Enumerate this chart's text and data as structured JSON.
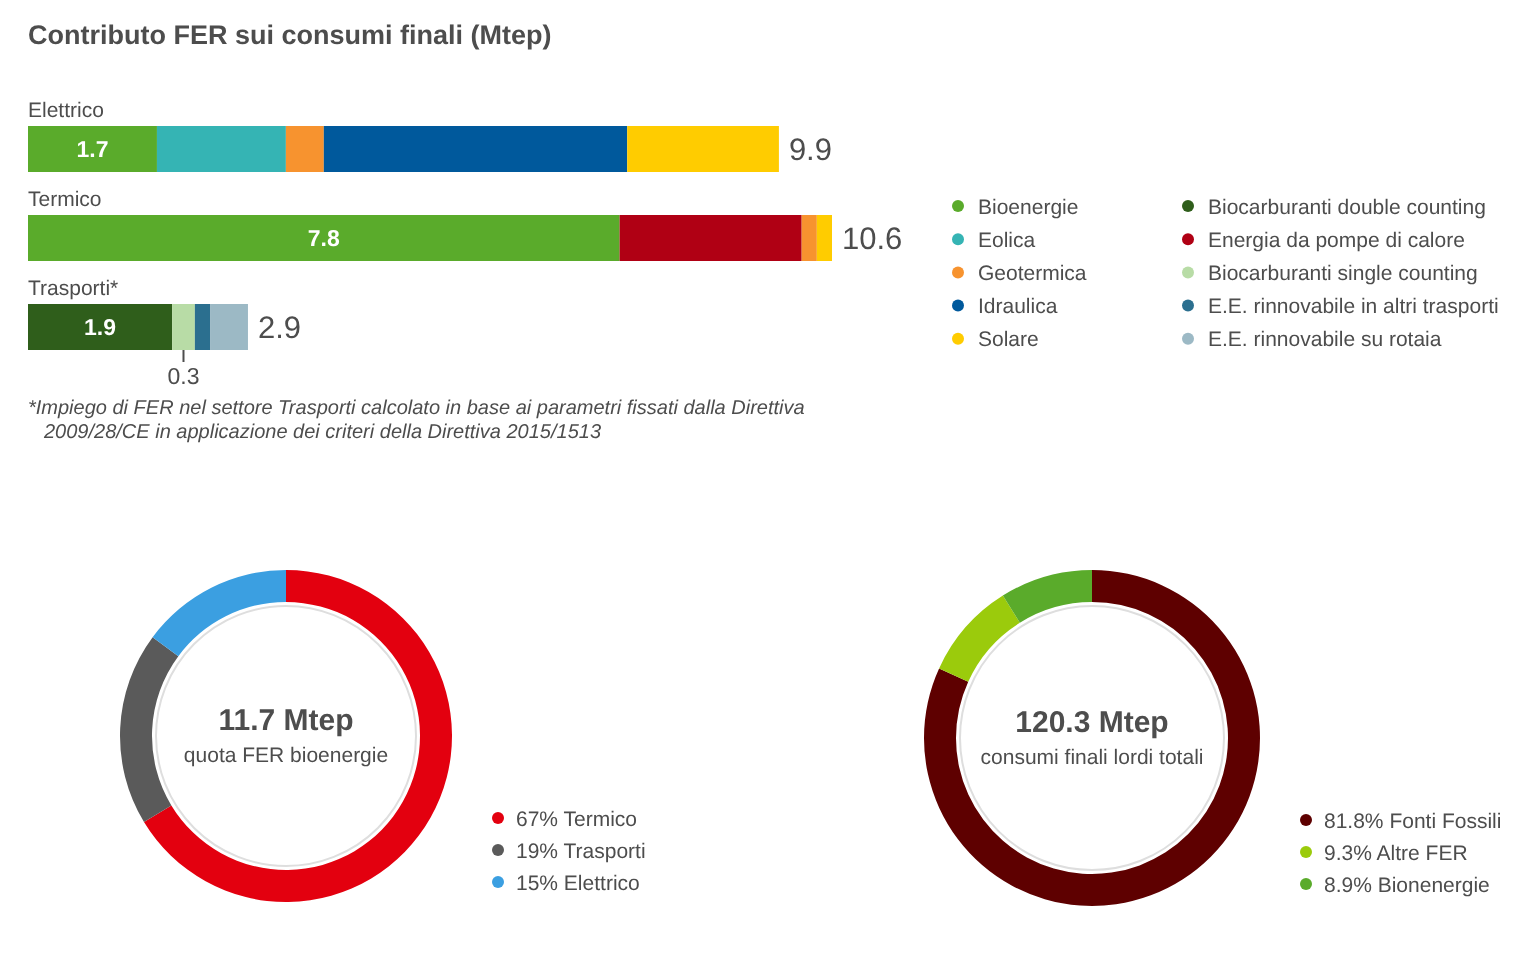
{
  "chart_data": [
    {
      "type": "bar",
      "orientation": "horizontal",
      "stacked": true,
      "title": "Contributo FER sui consumi finali (Mtep)",
      "categories": [
        "Elettrico",
        "Termico",
        "Trasporti*"
      ],
      "series": [
        {
          "name": "Bioenergie",
          "color": "#5aab2b",
          "values": [
            1.7,
            7.8,
            null
          ],
          "value_labels": [
            "1.7",
            "7.8",
            null
          ]
        },
        {
          "name": "Biocarburanti double counting",
          "color": "#2f5e1b",
          "values": [
            null,
            null,
            1.9
          ],
          "value_labels": [
            null,
            null,
            "1.9"
          ]
        },
        {
          "name": "Eolica",
          "color": "#35b4b4",
          "values": [
            1.7,
            null,
            null
          ]
        },
        {
          "name": "Energia da pompe di calore",
          "color": "#b00014",
          "values": [
            null,
            2.4,
            null
          ]
        },
        {
          "name": "Geotermica",
          "color": "#f7932f",
          "values": [
            0.5,
            0.2,
            null
          ]
        },
        {
          "name": "Biocarburanti single counting",
          "color": "#b8dca6",
          "values": [
            null,
            null,
            0.3
          ],
          "value_labels": [
            null,
            null,
            "0.3"
          ]
        },
        {
          "name": "Idraulica",
          "color": "#00599c",
          "values": [
            4.0,
            null,
            null
          ]
        },
        {
          "name": "E.E. rinnovabile in altri trasporti",
          "color": "#2b6f8f",
          "values": [
            null,
            null,
            0.2
          ]
        },
        {
          "name": "Solare",
          "color": "#ffcc00",
          "values": [
            2.0,
            0.2,
            null
          ]
        },
        {
          "name": "E.E. rinnovabile su rotaia",
          "color": "#9cb9c5",
          "values": [
            null,
            null,
            0.5
          ]
        }
      ],
      "totals": [
        "9.9",
        "10.6",
        "2.9"
      ],
      "legend": "right",
      "annotations": [
        "*Impiego di FER nel settore Trasporti calcolato in base ai parametri fissati dalla Direttiva 2009/28/CE in applicazione dei criteri della Direttiva 2015/1513"
      ]
    },
    {
      "type": "donut",
      "title": "11.7 Mtep",
      "subtitle": "quota FER bioenergie",
      "categories": [
        "67% Termico",
        "19% Trasporti",
        "15% Elettrico"
      ],
      "values": [
        67,
        19,
        15
      ],
      "colors": [
        "#e3000f",
        "#5a5a5a",
        "#3b9fe1"
      ],
      "legend": "bottom right"
    },
    {
      "type": "donut",
      "title": "120.3 Mtep",
      "subtitle": "consumi finali lordi totali",
      "categories": [
        "81.8% Fonti Fossili",
        "9.3% Altre FER",
        "8.9% Bionenergie"
      ],
      "values": [
        81.8,
        9.3,
        8.9
      ],
      "colors": [
        "#5e0000",
        "#9bcb0c",
        "#5aab2b"
      ],
      "legend": "bottom right"
    }
  ]
}
